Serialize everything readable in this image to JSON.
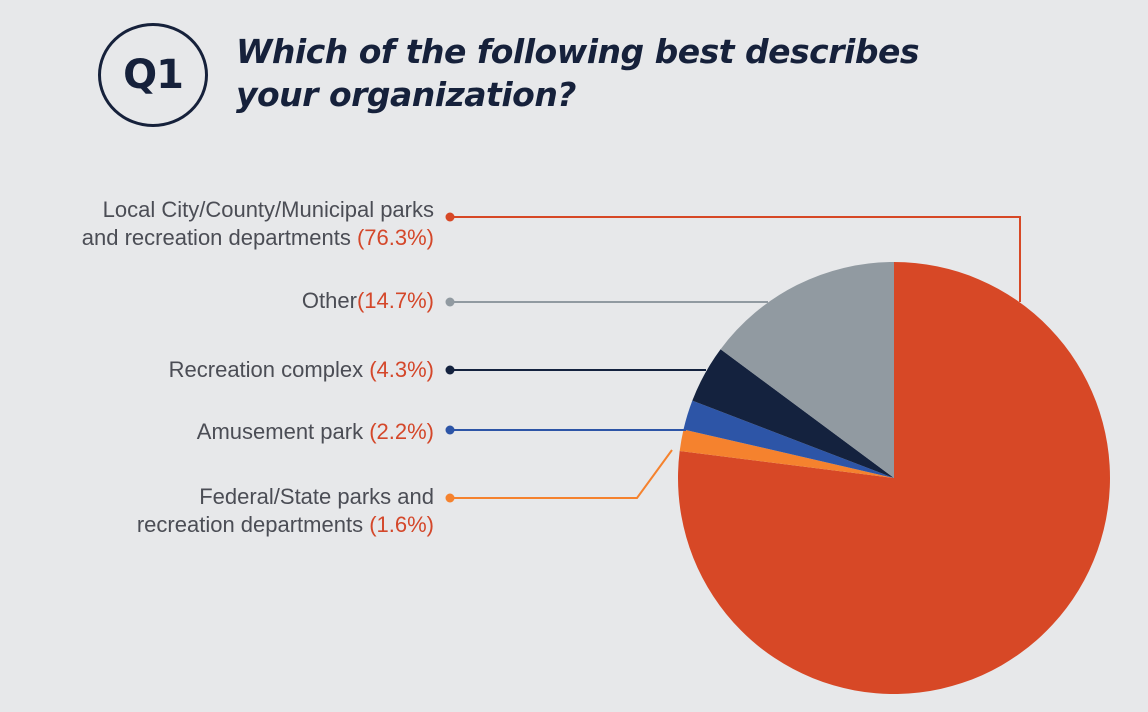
{
  "header": {
    "badge": "Q1",
    "title": "Which of the following best describes your organization?"
  },
  "chart_data": {
    "type": "pie",
    "title": "Which of the following best describes your organization?",
    "start": "12 o'clock",
    "direction": "clockwise",
    "legend_placement": "left",
    "slices": [
      {
        "label_line1": "Local City/County/Municipal parks",
        "label_line2": "and recreation departments",
        "percent_label": "(76.3%)",
        "value": 76.3,
        "color": "#d74826"
      },
      {
        "label_line1": "Federal/State parks and",
        "label_line2": "recreation departments",
        "percent_label": "(1.6%)",
        "value": 1.6,
        "color": "#f5822e"
      },
      {
        "label_line1": "Amusement park",
        "label_line2": "",
        "percent_label": "(2.2%)",
        "value": 2.2,
        "color": "#2d55a7"
      },
      {
        "label_line1": "Recreation complex",
        "label_line2": "",
        "percent_label": "(4.3%)",
        "value": 4.3,
        "color": "#14223e"
      },
      {
        "label_line1": "Other",
        "label_line2": "",
        "percent_label": "(14.7%)",
        "value": 14.7,
        "color": "#919aa1"
      }
    ]
  }
}
